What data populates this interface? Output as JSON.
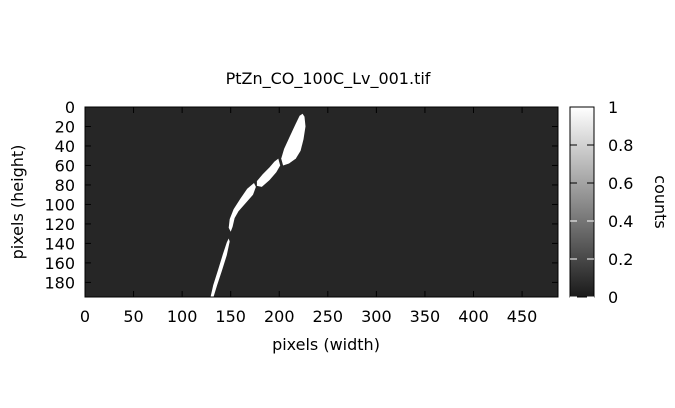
{
  "chart_data": {
    "type": "heatmap",
    "title": "PtZn_CO_100C_Lv_001.tif",
    "xlabel": "pixels (width)",
    "ylabel": "pixels (height)",
    "xlim": [
      0,
      487
    ],
    "ylim": [
      195,
      0
    ],
    "x_ticks": [
      0,
      50,
      100,
      150,
      200,
      250,
      300,
      350,
      400,
      450
    ],
    "y_ticks": [
      0,
      20,
      40,
      60,
      80,
      100,
      120,
      140,
      160,
      180
    ],
    "background_value": 0.13,
    "grid": false,
    "colormap": "gray",
    "colorbar": {
      "label": "counts",
      "range": [
        0,
        1
      ],
      "ticks": [
        "1",
        "0.8",
        "0.6",
        "0.4",
        "0.2",
        "0"
      ],
      "tick_values": [
        1,
        0.8,
        0.6,
        0.4,
        0.2,
        0
      ]
    },
    "features": [
      {
        "name": "streak-top",
        "value": 1,
        "polygon": [
          [
            224,
            7
          ],
          [
            226,
            10
          ],
          [
            227,
            20
          ],
          [
            225,
            33
          ],
          [
            222,
            45
          ],
          [
            217,
            53
          ],
          [
            210,
            58
          ],
          [
            204,
            60
          ],
          [
            202,
            53
          ],
          [
            205,
            43
          ],
          [
            211,
            30
          ],
          [
            217,
            17
          ],
          [
            221,
            9
          ]
        ]
      },
      {
        "name": "streak-middle",
        "value": 1,
        "polygon": [
          [
            199,
            53
          ],
          [
            201,
            60
          ],
          [
            197,
            67
          ],
          [
            190,
            75
          ],
          [
            182,
            82
          ],
          [
            177,
            81
          ],
          [
            177,
            76
          ],
          [
            183,
            69
          ],
          [
            190,
            62
          ],
          [
            195,
            56
          ]
        ]
      },
      {
        "name": "streak-lower",
        "value": 1,
        "polygon": [
          [
            174,
            78
          ],
          [
            176,
            82
          ],
          [
            173,
            90
          ],
          [
            166,
            98
          ],
          [
            158,
            107
          ],
          [
            154,
            114
          ],
          [
            152,
            123
          ],
          [
            150,
            128
          ],
          [
            148,
            124
          ],
          [
            149,
            115
          ],
          [
            153,
            105
          ],
          [
            160,
            94
          ],
          [
            167,
            84
          ]
        ]
      },
      {
        "name": "streak-bottom",
        "value": 1,
        "polygon": [
          [
            148,
            135
          ],
          [
            149,
            138
          ],
          [
            146,
            152
          ],
          [
            141,
            168
          ],
          [
            136,
            183
          ],
          [
            132,
            196
          ],
          [
            129,
            196
          ],
          [
            132,
            183
          ],
          [
            137,
            167
          ],
          [
            142,
            151
          ],
          [
            146,
            139
          ]
        ]
      }
    ]
  }
}
